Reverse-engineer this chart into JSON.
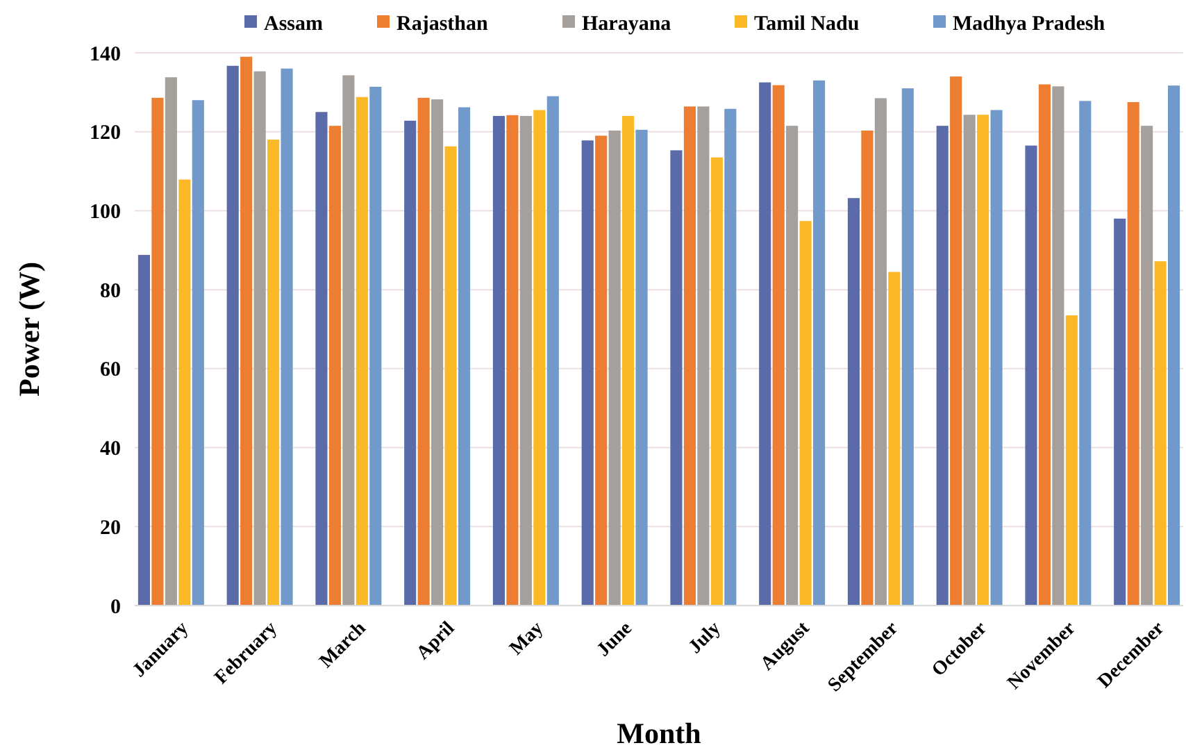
{
  "chart_data": {
    "type": "bar",
    "xlabel": "Month",
    "ylabel": "Power (W)",
    "categories": [
      "January",
      "February",
      "March",
      "April",
      "May",
      "June",
      "July",
      "August",
      "September",
      "October",
      "November",
      "December"
    ],
    "series": [
      {
        "name": "Assam",
        "color": "#5b6aa8",
        "values": [
          88.8,
          136.7,
          125,
          122.8,
          124,
          117.8,
          115.3,
          132.5,
          103.2,
          121.5,
          116.5,
          98
        ]
      },
      {
        "name": "Rajasthan",
        "color": "#ed7d31",
        "values": [
          128.6,
          139,
          121.5,
          128.6,
          124.2,
          119,
          126.4,
          131.8,
          120.3,
          134,
          132,
          127.5
        ]
      },
      {
        "name": "Harayana",
        "color": "#a5a09c",
        "values": [
          133.8,
          135.3,
          134.3,
          128.2,
          124,
          120.3,
          126.4,
          121.5,
          128.5,
          124.3,
          131.5,
          121.5
        ]
      },
      {
        "name": "Tamil Nadu",
        "color": "#fbb928",
        "values": [
          107.9,
          118,
          128.8,
          116.3,
          125.5,
          124,
          113.5,
          97.4,
          84.5,
          124.3,
          73.5,
          87.2
        ]
      },
      {
        "name": "Madhya Pradesh",
        "color": "#7199c9",
        "values": [
          128,
          136,
          131.4,
          126.2,
          129,
          120.5,
          125.8,
          133,
          131,
          125.5,
          127.8,
          131.7
        ]
      }
    ],
    "ylim": [
      0,
      140
    ],
    "yticks": [
      0,
      20,
      40,
      60,
      80,
      100,
      120,
      140
    ],
    "grid": "y",
    "legend": "top"
  }
}
